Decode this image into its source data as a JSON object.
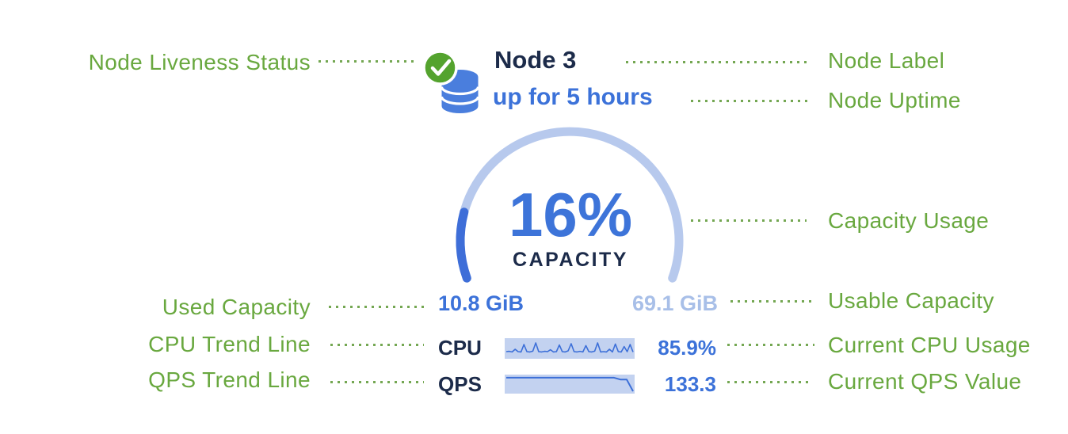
{
  "figure_title": "Annotated node status card",
  "annotations": {
    "color": "#69a83f",
    "left": [
      {
        "label": "Node Liveness Status"
      },
      {
        "label": "Used Capacity"
      },
      {
        "label": "CPU Trend Line"
      },
      {
        "label": "QPS Trend Line"
      }
    ],
    "right": [
      {
        "label": "Node Label"
      },
      {
        "label": "Node Uptime"
      },
      {
        "label": "Capacity Usage"
      },
      {
        "label": "Usable Capacity"
      },
      {
        "label": "Current CPU Usage"
      },
      {
        "label": "Current QPS Value"
      }
    ]
  },
  "node": {
    "name": "Node 3",
    "uptime": "up for 5 hours",
    "liveness": "live",
    "icons": {
      "liveness": "green-check-icon",
      "node": "database-icon"
    },
    "capacity": {
      "percent_label": "16%",
      "percent_value": 16,
      "caption": "CAPACITY",
      "used": "10.8 GiB",
      "usable": "69.1 GiB"
    },
    "cpu": {
      "label": "CPU",
      "value": "85.9%"
    },
    "qps": {
      "label": "QPS",
      "value": "133.3"
    }
  },
  "colors": {
    "annotation_green": "#69a83f",
    "check_green": "#54a32e",
    "db_icon_blue": "#4a7edd",
    "text_blue": "#3c72d9",
    "light_blue_text": "#a8bfe8",
    "navy": "#1c2b4a",
    "gauge_track": "#b7c9ed",
    "gauge_progress": "#3e6ed8",
    "spark_fill": "#c3d2f0"
  },
  "chart_data": [
    {
      "type": "pie",
      "subtype": "gauge-arc",
      "title": "CAPACITY",
      "value_percent": 16,
      "arc_sweep_deg": 220,
      "used": "10.8 GiB",
      "usable": "69.1 GiB"
    },
    {
      "type": "area",
      "name": "CPU trend sparkline",
      "current": "85.9%",
      "ylim": [
        0,
        1
      ],
      "values": [
        0.3,
        0.32,
        0.28,
        0.45,
        0.3,
        0.28,
        0.75,
        0.3,
        0.28,
        0.33,
        0.85,
        0.3,
        0.28,
        0.32,
        0.3,
        0.42,
        0.28,
        0.3,
        0.72,
        0.3,
        0.28,
        0.35,
        0.8,
        0.3,
        0.28,
        0.32,
        0.28,
        0.68,
        0.3,
        0.28,
        0.33,
        0.85,
        0.28,
        0.3,
        0.28,
        0.45,
        0.28,
        0.78,
        0.3,
        0.28,
        0.62,
        0.3,
        0.75,
        0.28
      ]
    },
    {
      "type": "area",
      "name": "QPS trend sparkline",
      "current": 133.3,
      "ylim": [
        0,
        1
      ],
      "values": [
        0.95,
        0.95,
        0.95,
        0.95,
        0.95,
        0.95,
        0.95,
        0.95,
        0.95,
        0.95,
        0.95,
        0.95,
        0.95,
        0.95,
        0.95,
        0.95,
        0.95,
        0.95,
        0.82,
        0.82,
        0.0
      ]
    }
  ]
}
